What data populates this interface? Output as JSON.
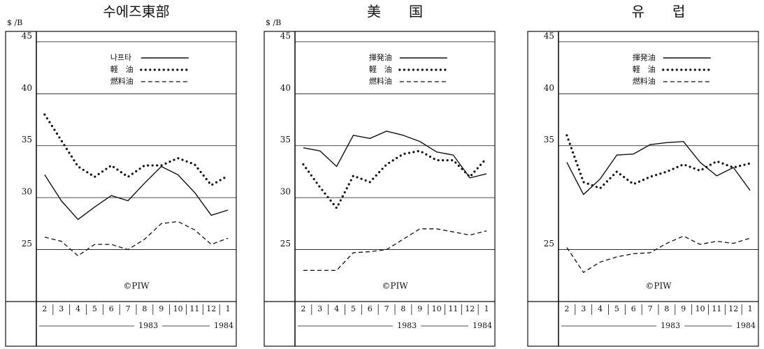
{
  "chart_data": [
    {
      "type": "line",
      "title": "수에즈東部",
      "y_label": "$ /B",
      "annotation": "©PIW",
      "categories": [
        "2",
        "3",
        "4",
        "5",
        "6",
        "7",
        "8",
        "9",
        "10",
        "11",
        "12",
        "1"
      ],
      "period_labels": [
        "1983",
        "1984"
      ],
      "ylim": [
        20,
        46
      ],
      "yticks": [
        25,
        30,
        35,
        40,
        45
      ],
      "grid": true,
      "series": [
        {
          "name": "나프타",
          "color": "#111111",
          "style": "solid",
          "values": [
            32.2,
            29.7,
            27.9,
            29.1,
            30.2,
            29.7,
            31.4,
            33.0,
            32.2,
            30.5,
            28.3,
            28.8
          ]
        },
        {
          "name": "軽　油",
          "color": "#111111",
          "style": "dotted",
          "values": [
            38.0,
            35.5,
            33.0,
            32.0,
            33.1,
            32.0,
            33.1,
            33.1,
            33.8,
            33.2,
            31.2,
            32.1
          ]
        },
        {
          "name": "燃料油",
          "color": "#111111",
          "style": "dashed",
          "values": [
            26.2,
            25.8,
            24.4,
            25.5,
            25.5,
            25.0,
            26.0,
            27.5,
            27.7,
            26.9,
            25.5,
            26.1
          ]
        }
      ]
    },
    {
      "type": "line",
      "title": "美　　国",
      "y_label": "$ /B",
      "annotation": "©PIW",
      "categories": [
        "2",
        "3",
        "4",
        "5",
        "6",
        "7",
        "8",
        "9",
        "10",
        "11",
        "12",
        "1"
      ],
      "period_labels": [
        "1983",
        "1984"
      ],
      "ylim": [
        20,
        46
      ],
      "yticks": [
        25,
        30,
        35,
        40,
        45
      ],
      "grid": true,
      "series": [
        {
          "name": "揮発油",
          "color": "#111111",
          "style": "solid",
          "values": [
            34.8,
            34.5,
            33.0,
            36.0,
            35.7,
            36.4,
            36.0,
            35.4,
            34.4,
            34.1,
            31.9,
            32.3
          ]
        },
        {
          "name": "軽　油",
          "color": "#111111",
          "style": "dotted",
          "values": [
            33.2,
            31.0,
            29.0,
            32.1,
            31.5,
            33.2,
            34.2,
            34.5,
            33.6,
            33.6,
            32.0,
            33.8
          ]
        },
        {
          "name": "燃料油",
          "color": "#111111",
          "style": "dashed",
          "values": [
            23.0,
            23.0,
            23.0,
            24.7,
            24.8,
            25.0,
            26.0,
            27.0,
            27.0,
            26.7,
            26.4,
            26.8
          ]
        }
      ]
    },
    {
      "type": "line",
      "title": "유　　럽",
      "annotation": "©PIW",
      "categories": [
        "2",
        "3",
        "4",
        "5",
        "6",
        "7",
        "8",
        "9",
        "10",
        "11",
        "12",
        "1"
      ],
      "period_labels": [
        "1983",
        "1984"
      ],
      "ylim": [
        20,
        46
      ],
      "yticks": [
        25,
        35,
        40,
        45
      ],
      "grid": true,
      "series": [
        {
          "name": "揮発油",
          "color": "#111111",
          "style": "solid",
          "values": [
            33.4,
            30.3,
            31.8,
            34.1,
            34.2,
            35.1,
            35.3,
            35.4,
            33.4,
            32.1,
            32.9,
            30.7
          ]
        },
        {
          "name": "軽　油",
          "color": "#111111",
          "style": "dotted",
          "values": [
            36.0,
            31.5,
            30.9,
            32.5,
            31.3,
            32.0,
            32.5,
            33.2,
            32.6,
            33.5,
            32.9,
            33.3
          ]
        },
        {
          "name": "燃料油",
          "color": "#111111",
          "style": "dashed",
          "values": [
            25.2,
            22.8,
            23.8,
            24.3,
            24.6,
            24.7,
            25.6,
            26.3,
            25.5,
            25.8,
            25.6,
            26.1
          ]
        }
      ]
    }
  ]
}
